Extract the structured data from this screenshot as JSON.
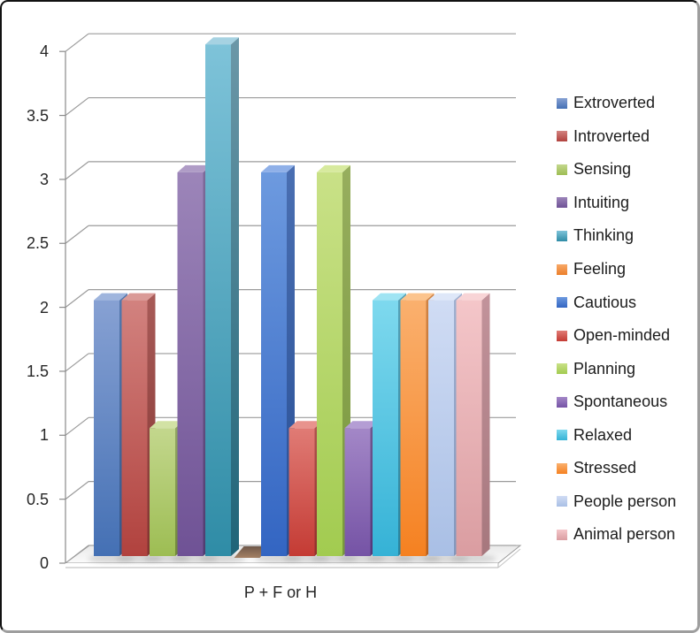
{
  "window": {
    "background": "#ffffff"
  },
  "chart_data": {
    "type": "bar",
    "variant": "3d-column",
    "title": "",
    "xlabel": "P + F or H",
    "ylabel": "",
    "categories": [
      "P + F or H"
    ],
    "grid": true,
    "legend_position": "right",
    "y_axis": {
      "min": 0,
      "max": 4,
      "step": 0.5,
      "tick_labels": [
        "0",
        "0.5",
        "1",
        "1.5",
        "2",
        "2.5",
        "3",
        "3.5",
        "4"
      ]
    },
    "series": [
      {
        "name": "Extroverted",
        "value": 2,
        "colors": {
          "front_light": "#87A1D3",
          "front_dark": "#4470B4",
          "side_light": "#5579AE",
          "side_dark": "#365688",
          "top": "#9FB5DD"
        }
      },
      {
        "name": "Introverted",
        "value": 2,
        "colors": {
          "front_light": "#D2827F",
          "front_dark": "#B1423E",
          "side_light": "#A85B58",
          "side_dark": "#833330",
          "top": "#DA9A97"
        }
      },
      {
        "name": "Sensing",
        "value": 1,
        "colors": {
          "front_light": "#C3D78D",
          "front_dark": "#9DBD53",
          "side_light": "#93A865",
          "side_dark": "#71883B",
          "top": "#D2E2A4"
        }
      },
      {
        "name": "Intuiting",
        "value": 3,
        "colors": {
          "front_light": "#9C85B9",
          "front_dark": "#6F5295",
          "side_light": "#7E6B99",
          "side_dark": "#513C70",
          "top": "#AF9CC6"
        }
      },
      {
        "name": "Thinking",
        "value": 4,
        "colors": {
          "front_light": "#7EC3D9",
          "front_dark": "#2F8CA6",
          "side_light": "#6C98A8",
          "side_dark": "#1F6478",
          "top": "#A6D2E2"
        }
      },
      {
        "name": "Feeling",
        "value": 0,
        "colors": {
          "front_light": "#F8A868",
          "front_dark": "#EC7F2B",
          "side_light": "#C98A52",
          "side_dark": "#B05E1E",
          "top": "#FBC08C"
        }
      },
      {
        "name": "Cautious",
        "value": 3,
        "colors": {
          "front_light": "#6D9ADF",
          "front_dark": "#3365C2",
          "side_light": "#4A6FB2",
          "side_dark": "#274E95",
          "top": "#8FB0E8"
        }
      },
      {
        "name": "Open-minded",
        "value": 1,
        "colors": {
          "front_light": "#E07B75",
          "front_dark": "#C43B34",
          "side_light": "#B05450",
          "side_dark": "#92302B",
          "top": "#E8938D"
        }
      },
      {
        "name": "Planning",
        "value": 3,
        "colors": {
          "front_light": "#C9E187",
          "front_dark": "#A2CB50",
          "side_light": "#97AE5E",
          "side_dark": "#78973C",
          "top": "#D7EA9E"
        }
      },
      {
        "name": "Spontaneous",
        "value": 1,
        "colors": {
          "front_light": "#A387C7",
          "front_dark": "#7553A5",
          "side_light": "#71588F",
          "side_dark": "#54387A",
          "top": "#B49DD4"
        }
      },
      {
        "name": "Relaxed",
        "value": 2,
        "colors": {
          "front_light": "#7ED9EE",
          "front_dark": "#35B2D6",
          "side_light": "#55A2B8",
          "side_dark": "#27839E",
          "top": "#9FE4F3"
        }
      },
      {
        "name": "Stressed",
        "value": 2,
        "colors": {
          "front_light": "#FAB06E",
          "front_dark": "#F58121",
          "side_light": "#D08445",
          "side_dark": "#B9601B",
          "top": "#FCC48D"
        }
      },
      {
        "name": "People person",
        "value": 2,
        "colors": {
          "front_light": "#D0DCF4",
          "front_dark": "#A9BFE5",
          "side_light": "#9FB0D0",
          "side_dark": "#8297BC",
          "top": "#DEE7F8"
        }
      },
      {
        "name": "Animal person",
        "value": 2,
        "colors": {
          "front_light": "#F4C6C9",
          "front_dark": "#DA9DA1",
          "side_light": "#C2939B",
          "side_dark": "#A6777D",
          "top": "#F8D4D6"
        }
      }
    ],
    "zero_bar_face_colors": {
      "light": "#A58164",
      "dark": "#6F584A"
    },
    "colors": {
      "gridline": "#9B9B9B",
      "axis": "#8A8A8A",
      "text": "#262626",
      "floor_back": "#E9E9E9",
      "floor_front": "#FBFBFB"
    }
  }
}
